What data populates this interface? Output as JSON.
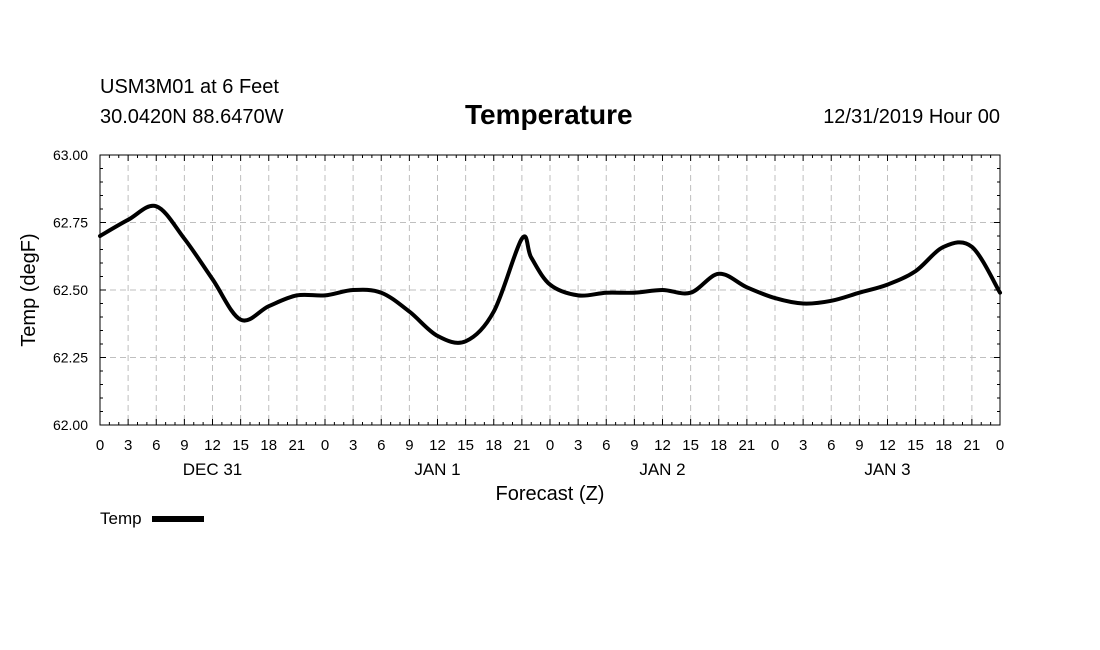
{
  "header": {
    "station": "USM3M01 at 6 Feet",
    "coords": "30.0420N 88.6470W",
    "title": "Temperature",
    "date": "12/31/2019 Hour 00"
  },
  "chart_data": {
    "type": "line",
    "title": "Temperature",
    "xlabel": "Forecast (Z)",
    "ylabel": "Temp (degF)",
    "ylim": [
      62.0,
      63.0
    ],
    "yticks": [
      "62.00",
      "62.25",
      "62.50",
      "62.75",
      "63.00"
    ],
    "xlim": [
      0,
      96
    ],
    "xtick_labels": [
      "0",
      "3",
      "6",
      "9",
      "12",
      "15",
      "18",
      "21",
      "0",
      "3",
      "6",
      "9",
      "12",
      "15",
      "18",
      "21",
      "0",
      "3",
      "6",
      "9",
      "12",
      "15",
      "18",
      "21",
      "0",
      "3",
      "6",
      "9",
      "12",
      "15",
      "18",
      "21",
      "0"
    ],
    "day_labels": [
      "DEC 31",
      "JAN 1",
      "JAN 2",
      "JAN 3"
    ],
    "grid": true,
    "legend": {
      "position": "bottom-left",
      "entries": [
        "Temp"
      ]
    },
    "series": [
      {
        "name": "Temp",
        "color": "#000000",
        "x": [
          0,
          3,
          6,
          9,
          12,
          15,
          18,
          21,
          24,
          27,
          30,
          33,
          36,
          39,
          42,
          45,
          46,
          48,
          51,
          54,
          57,
          60,
          63,
          66,
          69,
          72,
          75,
          78,
          81,
          84,
          87,
          90,
          93,
          96
        ],
        "y": [
          62.7,
          62.76,
          62.81,
          62.69,
          62.54,
          62.39,
          62.44,
          62.48,
          62.48,
          62.5,
          62.49,
          62.42,
          62.33,
          62.31,
          62.42,
          62.69,
          62.62,
          62.52,
          62.48,
          62.49,
          62.49,
          62.5,
          62.49,
          62.56,
          62.51,
          62.47,
          62.45,
          62.46,
          62.49,
          62.52,
          62.57,
          62.66,
          62.66,
          62.49
        ]
      }
    ]
  },
  "legend": {
    "label": "Temp"
  }
}
